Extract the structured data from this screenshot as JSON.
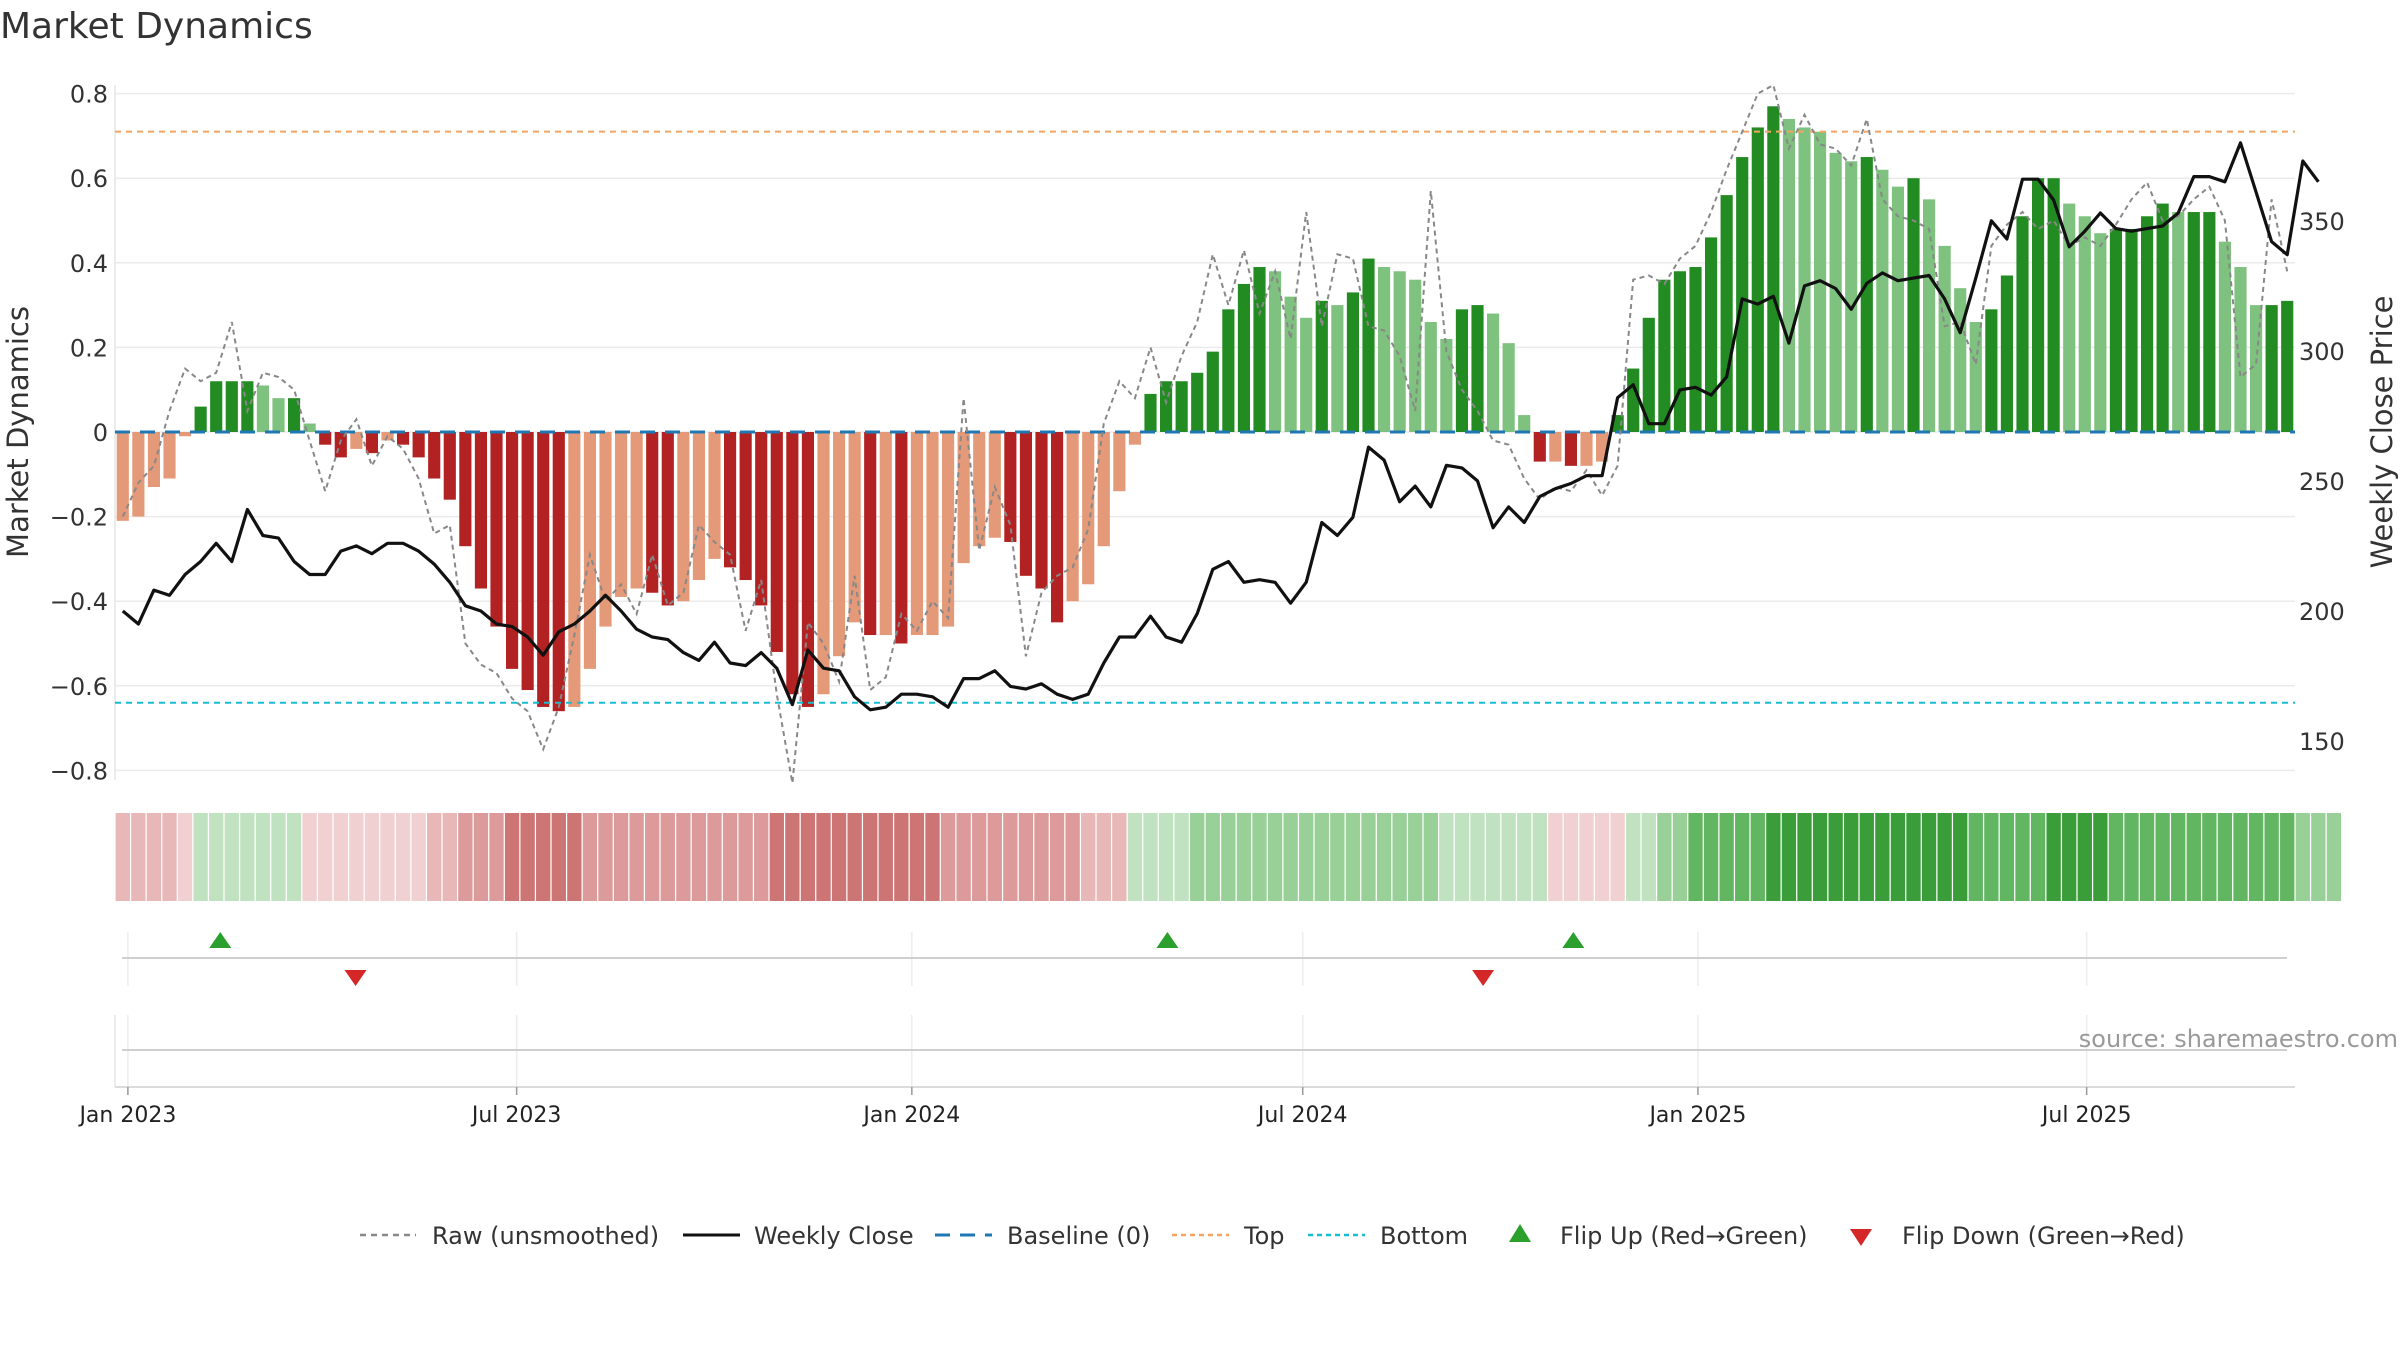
{
  "title": "Market Dynamics",
  "source": "source: sharemaestro.com",
  "colors": {
    "strong_green": "#228b22",
    "light_green": "#7fc17f",
    "strong_red": "#b22222",
    "light_red": "#e49a78",
    "baseline": "#1f77b4",
    "top": "#f4a460",
    "bottom": "#17becf",
    "flip_up": "#2ca02c",
    "flip_down": "#d62728"
  },
  "legend": {
    "raw": "Raw (unsmoothed)",
    "close": "Weekly Close",
    "baseline": "Baseline (0)",
    "top": "Top",
    "bottom": "Bottom",
    "flip_up": "Flip Up (Red→Green)",
    "flip_down": "Flip Down (Green→Red)"
  },
  "chart_data": {
    "type": "bar",
    "title": "Market Dynamics",
    "ylabel": "Market Dynamics",
    "y2label": "Weekly Close Price",
    "ylim": [
      -0.85,
      0.85
    ],
    "y2lim": [
      135,
      408
    ],
    "yticks": [
      "−0.8",
      "−0.6",
      "−0.4",
      "−0.2",
      "0",
      "0.2",
      "0.4",
      "0.6",
      "0.8"
    ],
    "y2ticks": [
      "150",
      "200",
      "250",
      "300",
      "350"
    ],
    "xticks": [
      "Jan 2023",
      "Jul 2023",
      "Jan 2024",
      "Jul 2024",
      "Jan 2025",
      "Jul 2025"
    ],
    "x_start": "2022-12-26",
    "x_end": "2025-10-06",
    "top_line": 0.71,
    "bottom_line": -0.64,
    "baseline": 0,
    "grid": true,
    "legend_position": "bottom",
    "dynamics": [
      -0.21,
      -0.2,
      -0.13,
      -0.11,
      -0.01,
      0.06,
      0.12,
      0.12,
      0.12,
      0.11,
      0.08,
      0.08,
      0.02,
      -0.03,
      -0.06,
      -0.04,
      -0.05,
      -0.02,
      -0.03,
      -0.06,
      -0.11,
      -0.16,
      -0.27,
      -0.37,
      -0.46,
      -0.56,
      -0.61,
      -0.65,
      -0.66,
      -0.65,
      -0.56,
      -0.46,
      -0.39,
      -0.37,
      -0.38,
      -0.41,
      -0.4,
      -0.35,
      -0.3,
      -0.32,
      -0.35,
      -0.41,
      -0.52,
      -0.62,
      -0.65,
      -0.62,
      -0.53,
      -0.45,
      -0.48,
      -0.48,
      -0.5,
      -0.48,
      -0.48,
      -0.46,
      -0.31,
      -0.27,
      -0.25,
      -0.26,
      -0.34,
      -0.37,
      -0.45,
      -0.4,
      -0.36,
      -0.27,
      -0.14,
      -0.03,
      0.09,
      0.12,
      0.12,
      0.14,
      0.19,
      0.29,
      0.35,
      0.39,
      0.38,
      0.32,
      0.27,
      0.31,
      0.3,
      0.33,
      0.41,
      0.39,
      0.38,
      0.36,
      0.26,
      0.22,
      0.29,
      0.3,
      0.28,
      0.21,
      0.04,
      -0.07,
      -0.07,
      -0.08,
      -0.08,
      -0.07,
      0.04,
      0.15,
      0.27,
      0.36,
      0.38,
      0.39,
      0.46,
      0.56,
      0.65,
      0.72,
      0.77,
      0.74,
      0.72,
      0.71,
      0.66,
      0.64,
      0.65,
      0.62,
      0.58,
      0.6,
      0.55,
      0.44,
      0.34,
      0.26,
      0.29,
      0.37,
      0.51,
      0.6,
      0.6,
      0.54,
      0.51,
      0.47,
      0.48,
      0.48,
      0.51,
      0.54,
      0.52,
      0.52,
      0.52,
      0.45,
      0.39,
      0.3,
      0.3,
      0.31
    ],
    "raw": [
      -0.2,
      -0.12,
      -0.08,
      0.05,
      0.15,
      0.12,
      0.14,
      0.26,
      0.05,
      0.14,
      0.13,
      0.1,
      -0.02,
      -0.14,
      -0.02,
      0.03,
      -0.08,
      -0.01,
      -0.04,
      -0.11,
      -0.24,
      -0.22,
      -0.5,
      -0.55,
      -0.57,
      -0.63,
      -0.66,
      -0.75,
      -0.65,
      -0.48,
      -0.29,
      -0.4,
      -0.36,
      -0.43,
      -0.29,
      -0.41,
      -0.38,
      -0.22,
      -0.26,
      -0.29,
      -0.47,
      -0.35,
      -0.62,
      -0.83,
      -0.45,
      -0.5,
      -0.59,
      -0.34,
      -0.61,
      -0.58,
      -0.43,
      -0.47,
      -0.4,
      -0.44,
      0.08,
      -0.28,
      -0.13,
      -0.22,
      -0.53,
      -0.38,
      -0.34,
      -0.32,
      -0.23,
      0.02,
      0.12,
      0.08,
      0.2,
      0.07,
      0.18,
      0.26,
      0.42,
      0.3,
      0.43,
      0.28,
      0.38,
      0.22,
      0.52,
      0.25,
      0.42,
      0.41,
      0.25,
      0.24,
      0.18,
      0.05,
      0.57,
      0.19,
      0.1,
      0.05,
      -0.02,
      -0.03,
      -0.11,
      -0.16,
      -0.13,
      -0.14,
      -0.09,
      -0.15,
      -0.08,
      0.36,
      0.37,
      0.35,
      0.41,
      0.44,
      0.52,
      0.62,
      0.71,
      0.8,
      0.82,
      0.67,
      0.75,
      0.68,
      0.67,
      0.63,
      0.74,
      0.55,
      0.51,
      0.5,
      0.48,
      0.25,
      0.26,
      0.16,
      0.44,
      0.49,
      0.52,
      0.48,
      0.5,
      0.44,
      0.46,
      0.44,
      0.49,
      0.55,
      0.59,
      0.5,
      0.51,
      0.55,
      0.58,
      0.5,
      0.13,
      0.16,
      0.55,
      0.38
    ],
    "weekly_close": [
      200,
      195,
      208,
      206,
      214,
      219,
      226,
      219,
      239,
      229,
      228,
      219,
      214,
      214,
      223,
      225,
      222,
      226,
      226,
      223,
      218,
      211,
      202,
      200,
      195,
      194,
      190,
      183,
      192,
      195,
      200,
      206,
      200,
      193,
      190,
      189,
      184,
      181,
      188,
      180,
      179,
      184,
      178,
      164,
      185,
      178,
      177,
      167,
      162,
      163,
      168,
      168,
      167,
      163,
      174,
      174,
      177,
      171,
      170,
      172,
      168,
      166,
      168,
      180,
      190,
      190,
      198,
      190,
      188,
      199,
      216,
      219,
      211,
      212,
      211,
      203,
      211,
      234,
      229,
      236,
      263,
      258,
      242,
      248,
      240,
      256,
      255,
      250,
      232,
      240,
      234,
      244,
      247,
      249,
      252,
      252,
      282,
      287,
      272,
      272,
      285,
      286,
      283,
      290,
      320,
      318,
      321,
      303,
      325,
      327,
      324,
      316,
      326,
      330,
      327,
      328,
      329,
      320,
      307,
      328,
      350,
      343,
      366,
      366,
      358,
      340,
      346,
      353,
      347,
      346,
      347,
      348,
      353,
      367,
      367,
      365,
      380,
      361,
      342,
      337,
      373,
      365
    ],
    "regime_strip": [
      "r1",
      "r1",
      "r1",
      "r1",
      "r0",
      "g1",
      "g1",
      "g1",
      "g1",
      "g1",
      "g1",
      "g1",
      "r0",
      "r0",
      "r0",
      "r0",
      "r0",
      "r0",
      "r0",
      "r0",
      "r1",
      "r1",
      "r2",
      "r2",
      "r2",
      "r3",
      "r3",
      "r3",
      "r3",
      "r3",
      "r2",
      "r2",
      "r2",
      "r2",
      "r2",
      "r2",
      "r2",
      "r2",
      "r2",
      "r2",
      "r2",
      "r2",
      "r3",
      "r3",
      "r3",
      "r3",
      "r3",
      "r3",
      "r3",
      "r3",
      "r3",
      "r3",
      "r3",
      "r2",
      "r2",
      "r2",
      "r2",
      "r2",
      "r2",
      "r2",
      "r2",
      "r2",
      "r1",
      "r1",
      "r1",
      "g1",
      "g1",
      "g1",
      "g1",
      "g2",
      "g2",
      "g2",
      "g2",
      "g2",
      "g2",
      "g2",
      "g2",
      "g2",
      "g2",
      "g2",
      "g2",
      "g2",
      "g2",
      "g2",
      "g2",
      "g1",
      "g1",
      "g1",
      "g1",
      "g1",
      "g1",
      "g1",
      "r0",
      "r0",
      "r0",
      "r0",
      "r0",
      "g1",
      "g1",
      "g2",
      "g2",
      "g3",
      "g3",
      "g3",
      "g3",
      "g3",
      "g4",
      "g4",
      "g4",
      "g4",
      "g4",
      "g4",
      "g4",
      "g4",
      "g4",
      "g4",
      "g4",
      "g4",
      "g4",
      "g3",
      "g3",
      "g3",
      "g3",
      "g3",
      "g4",
      "g4",
      "g4",
      "g4",
      "g3",
      "g3",
      "g3",
      "g3",
      "g3",
      "g3",
      "g3",
      "g3",
      "g3",
      "g3",
      "g3",
      "g3",
      "g2",
      "g2",
      "g2"
    ],
    "flips_up": [
      "2023-02-13",
      "2024-04-29",
      "2024-11-04"
    ],
    "flips_down": [
      "2023-04-17",
      "2024-09-23"
    ]
  }
}
